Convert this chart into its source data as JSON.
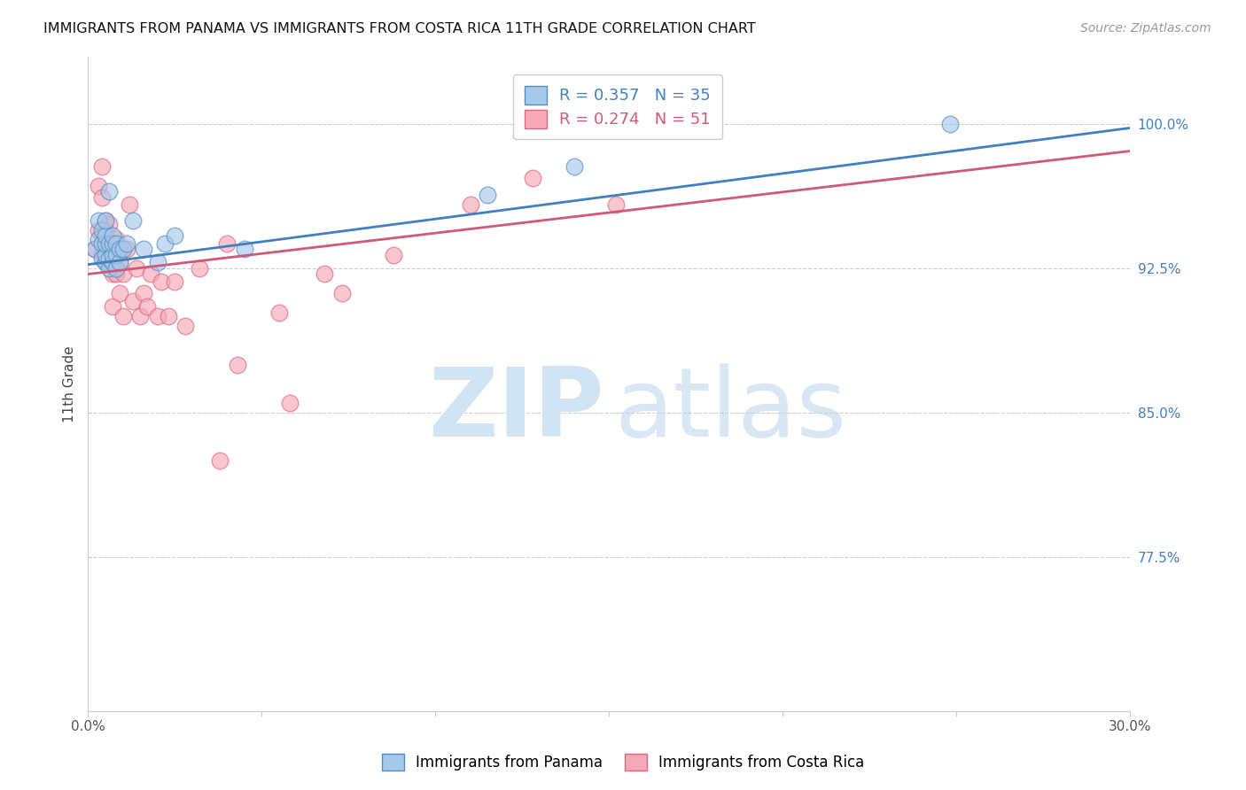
{
  "title": "IMMIGRANTS FROM PANAMA VS IMMIGRANTS FROM COSTA RICA 11TH GRADE CORRELATION CHART",
  "source": "Source: ZipAtlas.com",
  "ylabel": "11th Grade",
  "ytick_labels": [
    "77.5%",
    "85.0%",
    "92.5%",
    "100.0%"
  ],
  "ytick_values": [
    0.775,
    0.85,
    0.925,
    1.0
  ],
  "xlim": [
    0.0,
    0.3
  ],
  "ylim": [
    0.695,
    1.035
  ],
  "legend_blue_R": "R = 0.357",
  "legend_blue_N": "N = 35",
  "legend_pink_R": "R = 0.274",
  "legend_pink_N": "N = 51",
  "blue_fill": "#a8c8e8",
  "pink_fill": "#f4a8b8",
  "blue_edge": "#5090c8",
  "pink_edge": "#e06880",
  "blue_line_color": "#4080c0",
  "pink_line_color": "#d05878",
  "blue_legend_color": "#4080c0",
  "pink_legend_color": "#d05878",
  "right_axis_color": "#4080c0",
  "blue_scatter_x": [
    0.002,
    0.003,
    0.003,
    0.004,
    0.004,
    0.004,
    0.005,
    0.005,
    0.005,
    0.005,
    0.005,
    0.006,
    0.006,
    0.006,
    0.006,
    0.007,
    0.007,
    0.007,
    0.007,
    0.008,
    0.008,
    0.008,
    0.009,
    0.009,
    0.01,
    0.011,
    0.013,
    0.016,
    0.02,
    0.022,
    0.025,
    0.045,
    0.115,
    0.14,
    0.248
  ],
  "blue_scatter_y": [
    0.935,
    0.94,
    0.95,
    0.93,
    0.938,
    0.945,
    0.928,
    0.932,
    0.938,
    0.942,
    0.95,
    0.925,
    0.93,
    0.938,
    0.965,
    0.928,
    0.932,
    0.938,
    0.942,
    0.925,
    0.932,
    0.938,
    0.928,
    0.935,
    0.935,
    0.938,
    0.95,
    0.935,
    0.928,
    0.938,
    0.942,
    0.935,
    0.963,
    0.978,
    1.0
  ],
  "pink_scatter_x": [
    0.002,
    0.003,
    0.003,
    0.004,
    0.004,
    0.004,
    0.004,
    0.005,
    0.005,
    0.005,
    0.005,
    0.006,
    0.006,
    0.006,
    0.007,
    0.007,
    0.007,
    0.007,
    0.008,
    0.008,
    0.008,
    0.009,
    0.009,
    0.009,
    0.01,
    0.01,
    0.011,
    0.012,
    0.013,
    0.014,
    0.015,
    0.016,
    0.017,
    0.018,
    0.02,
    0.021,
    0.023,
    0.025,
    0.028,
    0.032,
    0.038,
    0.04,
    0.043,
    0.055,
    0.058,
    0.068,
    0.073,
    0.088,
    0.11,
    0.128,
    0.152
  ],
  "pink_scatter_y": [
    0.935,
    0.945,
    0.968,
    0.932,
    0.942,
    0.962,
    0.978,
    0.928,
    0.938,
    0.945,
    0.95,
    0.928,
    0.935,
    0.948,
    0.905,
    0.922,
    0.932,
    0.938,
    0.922,
    0.932,
    0.94,
    0.912,
    0.928,
    0.935,
    0.9,
    0.922,
    0.935,
    0.958,
    0.908,
    0.925,
    0.9,
    0.912,
    0.905,
    0.922,
    0.9,
    0.918,
    0.9,
    0.918,
    0.895,
    0.925,
    0.825,
    0.938,
    0.875,
    0.902,
    0.855,
    0.922,
    0.912,
    0.932,
    0.958,
    0.972,
    0.958
  ],
  "blue_line_x0": 0.0,
  "blue_line_x1": 0.3,
  "blue_line_y0": 0.927,
  "blue_line_y1": 0.998,
  "pink_line_x0": 0.0,
  "pink_line_x1": 0.3,
  "pink_line_y0": 0.922,
  "pink_line_y1": 0.986
}
